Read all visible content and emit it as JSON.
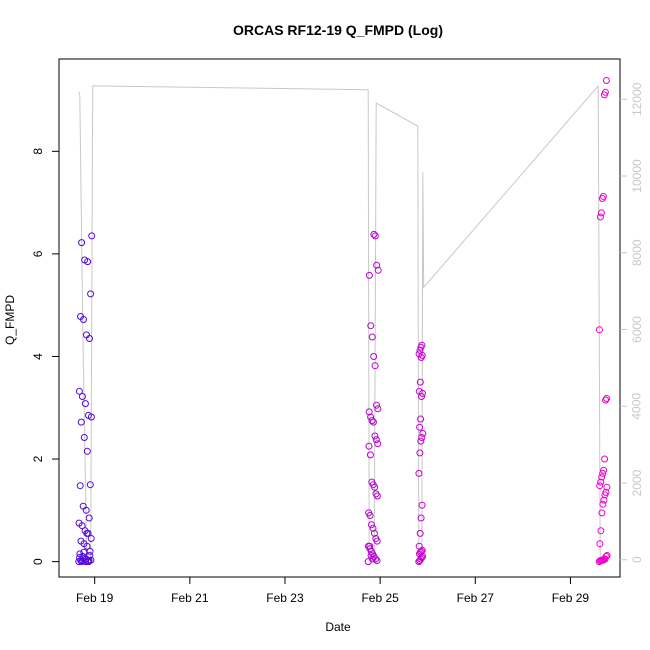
{
  "chart_data": {
    "type": "scatter",
    "title": "ORCAS RF12-19 Q_FMPD (Log)",
    "xlabel": "Date",
    "ylabel": "Q_FMPD",
    "xlim": [
      "2016-02-18T06:00",
      "2016-03-01T01:00"
    ],
    "ylim": [
      -0.3,
      9.8
    ],
    "y2lim": [
      -450,
      13050
    ],
    "x_ticks": [
      {
        "date": "2016-02-19",
        "label": "Feb 19"
      },
      {
        "date": "2016-02-21",
        "label": "Feb 21"
      },
      {
        "date": "2016-02-23",
        "label": "Feb 23"
      },
      {
        "date": "2016-02-25",
        "label": "Feb 25"
      },
      {
        "date": "2016-02-27",
        "label": "Feb 27"
      },
      {
        "date": "2016-02-29",
        "label": "Feb 29"
      }
    ],
    "y_ticks": [
      {
        "value": 0,
        "label": "0"
      },
      {
        "value": 2,
        "label": "2"
      },
      {
        "value": 4,
        "label": "4"
      },
      {
        "value": 6,
        "label": "6"
      },
      {
        "value": 8,
        "label": "8"
      }
    ],
    "y2_ticks": [
      {
        "value": 0,
        "label": "0"
      },
      {
        "value": 2000,
        "label": "2000"
      },
      {
        "value": 4000,
        "label": "4000"
      },
      {
        "value": 6000,
        "label": "6000"
      },
      {
        "value": 8000,
        "label": "8000"
      },
      {
        "value": 10000,
        "label": "10000"
      },
      {
        "value": 12000,
        "label": "12000"
      }
    ],
    "grid": false,
    "marker": "open-circle",
    "color_start": "#4b0cd9",
    "color_end": "#f000c8",
    "line_color": "#c8c8c8",
    "line_series": [
      {
        "x": "2016-02-18T16:00",
        "y": 12200
      },
      {
        "x": "2016-02-18T16:30",
        "y": 12100
      },
      {
        "x": "2016-02-18T18:00",
        "y": 6000
      },
      {
        "x": "2016-02-18T20:00",
        "y": 0
      },
      {
        "x": "2016-02-18T22:00",
        "y": 0
      },
      {
        "x": "2016-02-18T23:00",
        "y": 12350
      },
      {
        "x": "2016-02-24T18:00",
        "y": 12250
      },
      {
        "x": "2016-02-24T18:30",
        "y": 0
      },
      {
        "x": "2016-02-24T21:00",
        "y": 0
      },
      {
        "x": "2016-02-24T22:00",
        "y": 11900
      },
      {
        "x": "2016-02-25T19:00",
        "y": 11300
      },
      {
        "x": "2016-02-25T19:30",
        "y": 0
      },
      {
        "x": "2016-02-25T21:00",
        "y": 0
      },
      {
        "x": "2016-02-25T21:30",
        "y": 10100
      },
      {
        "x": "2016-02-25T22:00",
        "y": 7100
      },
      {
        "x": "2016-02-29T14:00",
        "y": 12350
      },
      {
        "x": "2016-02-29T15:00",
        "y": 0
      },
      {
        "x": "2016-02-29T19:00",
        "y": 0
      }
    ],
    "flights": [
      {
        "start": "2016-02-18T16:00",
        "end": "2016-02-18T22:30",
        "y": [
          0,
          0.02,
          0.05,
          0.1,
          0.15,
          0.2,
          0.3,
          0.35,
          0.4,
          0.45,
          0.55,
          0.6,
          0.7,
          0.75,
          0.85,
          1.0,
          1.08,
          1.48,
          1.5,
          2.15,
          2.42,
          2.72,
          2.82,
          2.85,
          3.08,
          3.22,
          3.32,
          4.35,
          4.42,
          4.72,
          4.78,
          5.22,
          5.85,
          5.88,
          6.22,
          6.35,
          0,
          0,
          0.02,
          0.08,
          0.12,
          0.55,
          0.18,
          0.02,
          0.03,
          0.0,
          0.04,
          0.0
        ]
      },
      {
        "start": "2016-02-24T18:00",
        "end": "2016-02-24T23:00",
        "y": [
          0,
          0.02,
          0.05,
          0.1,
          0.15,
          0.2,
          0.25,
          0.3,
          0.4,
          0.45,
          0.55,
          0.65,
          0.72,
          0.9,
          0.95,
          1.28,
          1.32,
          1.45,
          1.5,
          1.55,
          2.08,
          2.25,
          2.3,
          2.38,
          2.45,
          2.72,
          2.75,
          2.82,
          2.92,
          2.98,
          3.05,
          3.82,
          4.0,
          4.38,
          4.6,
          5.58,
          5.68,
          5.78,
          6.35,
          6.38,
          0.05,
          0.12,
          0.3
        ]
      },
      {
        "start": "2016-02-25T19:30",
        "end": "2016-02-25T21:30",
        "y": [
          0,
          0.02,
          0.05,
          0.08,
          0.1,
          0.15,
          0.18,
          0.2,
          0.22,
          0.3,
          0.55,
          0.85,
          1.1,
          1.72,
          2.12,
          2.35,
          2.42,
          2.5,
          2.62,
          2.78,
          3.22,
          3.28,
          3.32,
          3.5,
          3.98,
          4.02,
          4.05,
          4.12,
          4.18,
          4.22
        ]
      },
      {
        "start": "2016-02-29T14:30",
        "end": "2016-02-29T18:30",
        "y": [
          0,
          0.02,
          0.02,
          0.03,
          0.03,
          0.05,
          0.05,
          0.1,
          0.12,
          0.35,
          0.6,
          0.95,
          1.12,
          1.2,
          1.3,
          1.35,
          1.45,
          1.48,
          1.55,
          1.65,
          1.72,
          1.78,
          2.0,
          3.15,
          3.18,
          4.52,
          6.72,
          6.8,
          7.08,
          7.12,
          9.1,
          9.15,
          9.38
        ]
      }
    ]
  }
}
